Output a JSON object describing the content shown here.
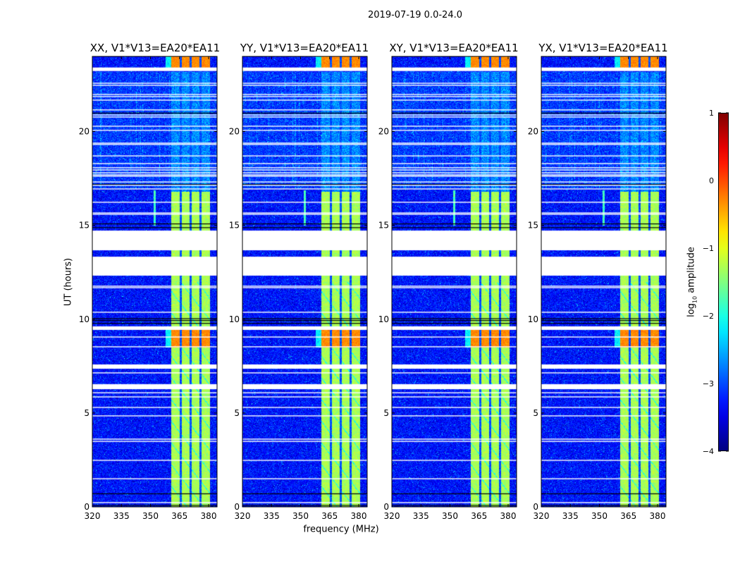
{
  "chart_data": {
    "type": "heatmap",
    "title": "2019-07-19 0.0-24.0",
    "xlabel": "frequency (MHz)",
    "ylabel": "UT (hours)",
    "xlim": [
      320,
      384.4
    ],
    "ylim": [
      0,
      24
    ],
    "xticks": [
      320,
      335,
      350,
      365,
      380
    ],
    "yticks": [
      0,
      5,
      10,
      15,
      20
    ],
    "panels": [
      {
        "title": "XX, V1*V13=EA20*EA11",
        "seed": 11
      },
      {
        "title": "YY, V1*V13=EA20*EA11",
        "seed": 23
      },
      {
        "title": "XY, V1*V13=EA20*EA11",
        "seed": 37
      },
      {
        "title": "YX, V1*V13=EA20*EA11",
        "seed": 41
      }
    ],
    "colorbar": {
      "label": "log10 amplitude",
      "label_main": "log",
      "label_sub": "10",
      "label_rest": " amplitude",
      "colormap": "jet",
      "range": [
        -4,
        1
      ],
      "ticks": [
        1,
        0,
        -1,
        -2,
        -3,
        -4
      ],
      "tick_labels": [
        "1",
        "0",
        "−1",
        "−2",
        "−3",
        "−4"
      ]
    },
    "background_level": -3.3,
    "band": {
      "start_mhz": 360.7,
      "end_mhz": 380.4,
      "dividers_mhz": [
        365.5,
        370.5,
        375.6
      ],
      "level": -1.3
    },
    "hot_intervals_hours": [
      [
        23.3,
        24.0
      ],
      [
        8.5,
        9.6
      ]
    ],
    "flagged_wide_hours": [
      [
        23.22,
        23.41
      ],
      [
        13.67,
        14.72
      ],
      [
        12.32,
        13.33
      ],
      [
        9.43,
        9.62
      ],
      [
        7.36,
        7.59
      ],
      [
        6.27,
        6.54
      ]
    ],
    "flagged_thin_hours": [
      22.57,
      22.46,
      21.97,
      21.86,
      21.67,
      21.15,
      20.88,
      20.77,
      20.28,
      20.06,
      19.38,
      19.31,
      18.7,
      18.29,
      18.07,
      17.95,
      17.8,
      17.69,
      17.62,
      17.31,
      17.13,
      16.94,
      16.23,
      15.66,
      15.59,
      11.76,
      11.68,
      10.37,
      9.05,
      8.53,
      7.14,
      6.08,
      5.86,
      5.3,
      4.85,
      3.61,
      3.49,
      2.48,
      1.5,
      0.23
    ],
    "dark_rows_hours": [
      21.0,
      17.2,
      15.1,
      14.9,
      9.8,
      9.95,
      10.05,
      0.72,
      0.1
    ]
  }
}
